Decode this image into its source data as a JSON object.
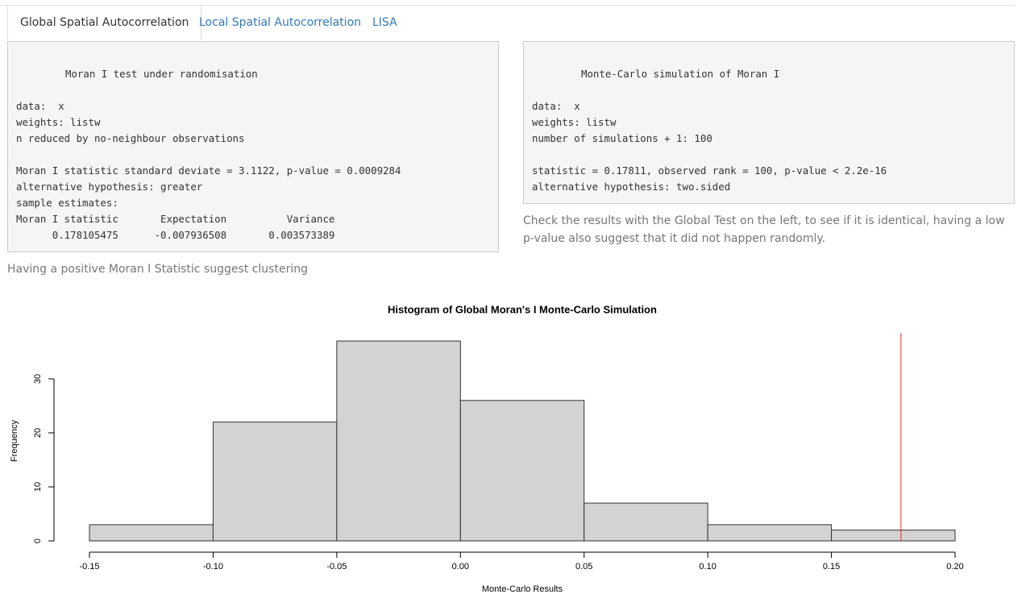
{
  "tabs": [
    "Global Spatial Autocorrelation",
    "Local Spatial Autocorrelation",
    "LISA"
  ],
  "left_output": {
    "heading": "Moran I test under randomisation",
    "blocks": [
      [
        "data:  x",
        "weights: listw",
        "n reduced by no-neighbour observations"
      ],
      [
        "Moran I statistic standard deviate = 3.1122, p-value = 0.0009284",
        "alternative hypothesis: greater",
        "sample estimates:",
        "Moran I statistic       Expectation          Variance",
        "      0.178105475      -0.007936508       0.003573389"
      ]
    ]
  },
  "left_note": "Having a positive Moran I Statistic suggest clustering",
  "right_output": {
    "heading": "Monte-Carlo simulation of Moran I",
    "blocks": [
      [
        "data:  x",
        "weights: listw",
        "number of simulations + 1: 100"
      ],
      [
        "statistic = 0.17811, observed rank = 100, p-value < 2.2e-16",
        "alternative hypothesis: two.sided"
      ]
    ]
  },
  "right_note": "Check the results with the Global Test on the left, to see if it is identical, having a low p-value also suggest that it did not happen randomly.",
  "chart_data": {
    "type": "histogram",
    "title": "Histogram of Global Moran's I Monte-Carlo Simulation",
    "xlabel": "Monte-Carlo Results",
    "ylabel": "Frequency",
    "bins": [
      -0.15,
      -0.1,
      -0.05,
      0,
      0.05,
      0.1,
      0.15,
      0.2
    ],
    "values": [
      3,
      22,
      37,
      26,
      7,
      3,
      2
    ],
    "color": "#d3d3d3",
    "edgecolor": "#333333",
    "xlim": [
      -0.15,
      0.2
    ],
    "xticks": [
      {
        "value": -0.15,
        "label": "-0.15"
      },
      {
        "value": -0.1,
        "label": "-0.10"
      },
      {
        "value": -0.05,
        "label": "-0.05"
      },
      {
        "value": 0,
        "label": "0.00"
      },
      {
        "value": 0.05,
        "label": "0.05"
      },
      {
        "value": 0.1,
        "label": "0.10"
      },
      {
        "value": 0.15,
        "label": "0.15"
      },
      {
        "value": 0.2,
        "label": "0.20"
      }
    ],
    "ylim": [
      0,
      38.5
    ],
    "yticks": [
      0,
      10,
      20,
      30
    ],
    "vline": {
      "value": 0.17811,
      "color": "#e03030"
    }
  }
}
